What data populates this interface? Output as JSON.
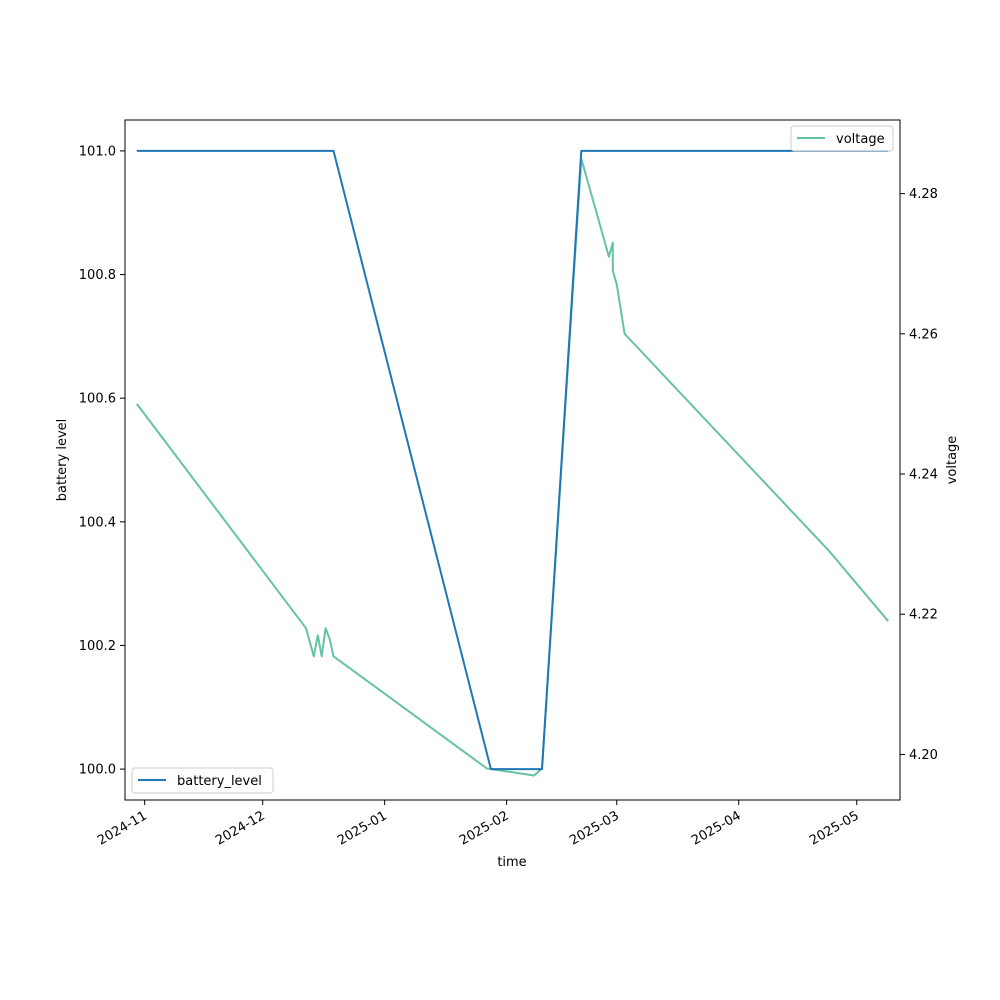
{
  "chart_data": {
    "type": "line",
    "xlabel": "time",
    "ylabel_left": "battery level",
    "ylabel_right": "voltage",
    "x_ticks": [
      "2024-11",
      "2024-12",
      "2025-01",
      "2025-02",
      "2025-03",
      "2025-04",
      "2025-05"
    ],
    "y_left_ticks": [
      "100.0",
      "100.2",
      "100.4",
      "100.6",
      "100.8",
      "101.0"
    ],
    "y_right_ticks": [
      "4.20",
      "4.22",
      "4.24",
      "4.26",
      "4.28"
    ],
    "y_left_range": [
      99.95,
      101.05
    ],
    "y_right_range": [
      4.1935,
      4.2905
    ],
    "x_range": [
      "2024-10-27",
      "2025-05-12"
    ],
    "series": [
      {
        "name": "battery_level",
        "axis": "left",
        "color": "#1f77b4",
        "points": [
          [
            "2024-10-30",
            101.0
          ],
          [
            "2024-12-19",
            101.0
          ],
          [
            "2025-01-28",
            100.0
          ],
          [
            "2025-02-10",
            100.0
          ],
          [
            "2025-02-20",
            101.0
          ],
          [
            "2025-05-09",
            101.0
          ]
        ]
      },
      {
        "name": "voltage",
        "axis": "right",
        "color": "#66c2a5",
        "points": [
          [
            "2024-10-30",
            4.25
          ],
          [
            "2024-12-12",
            4.218
          ],
          [
            "2024-12-14",
            4.214
          ],
          [
            "2024-12-15",
            4.217
          ],
          [
            "2024-12-16",
            4.214
          ],
          [
            "2024-12-17",
            4.218
          ],
          [
            "2024-12-18",
            4.2165
          ],
          [
            "2024-12-19",
            4.214
          ],
          [
            "2025-01-27",
            4.198
          ],
          [
            "2025-02-08",
            4.197
          ],
          [
            "2025-02-10",
            4.198
          ],
          [
            "2025-02-20",
            4.285
          ],
          [
            "2025-02-27",
            4.271
          ],
          [
            "2025-02-28",
            4.273
          ],
          [
            "2025-02-28",
            4.269
          ],
          [
            "2025-03-01",
            4.267
          ],
          [
            "2025-03-03",
            4.26
          ],
          [
            "2025-04-24",
            4.229
          ],
          [
            "2025-05-09",
            4.219
          ]
        ]
      }
    ],
    "legends": [
      {
        "label": "battery_level",
        "placement": "lower-left"
      },
      {
        "label": "voltage",
        "placement": "upper-right"
      }
    ]
  }
}
